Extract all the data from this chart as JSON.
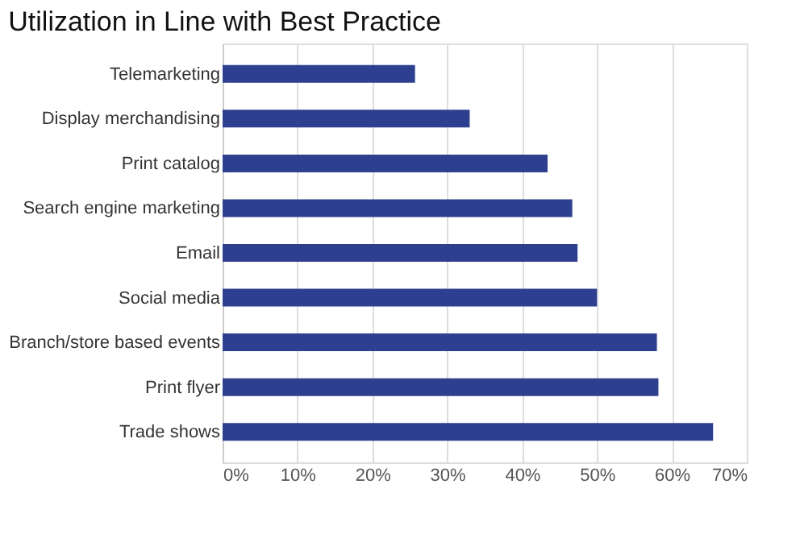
{
  "chart_data": {
    "type": "bar",
    "orientation": "horizontal",
    "title": "Utilization in Line with Best Practice",
    "categories": [
      "Telemarketing",
      "Display merchandising",
      "Print catalog",
      "Search engine marketing",
      "Email",
      "Social media",
      "Branch/store based events",
      "Print flyer",
      "Trade shows"
    ],
    "values": [
      25.7,
      33.0,
      43.4,
      46.7,
      47.4,
      50.0,
      58.0,
      58.2,
      65.5
    ],
    "color": "#2e3f8f",
    "xlim": [
      0,
      70
    ],
    "xticks": [
      {
        "value": 0,
        "label": "0%"
      },
      {
        "value": 10,
        "label": "10%"
      },
      {
        "value": 20,
        "label": "20%"
      },
      {
        "value": 30,
        "label": "30%"
      },
      {
        "value": 40,
        "label": "40%"
      },
      {
        "value": 50,
        "label": "50%"
      },
      {
        "value": 60,
        "label": "60%"
      },
      {
        "value": 70,
        "label": "70%"
      }
    ],
    "grid": "x"
  }
}
